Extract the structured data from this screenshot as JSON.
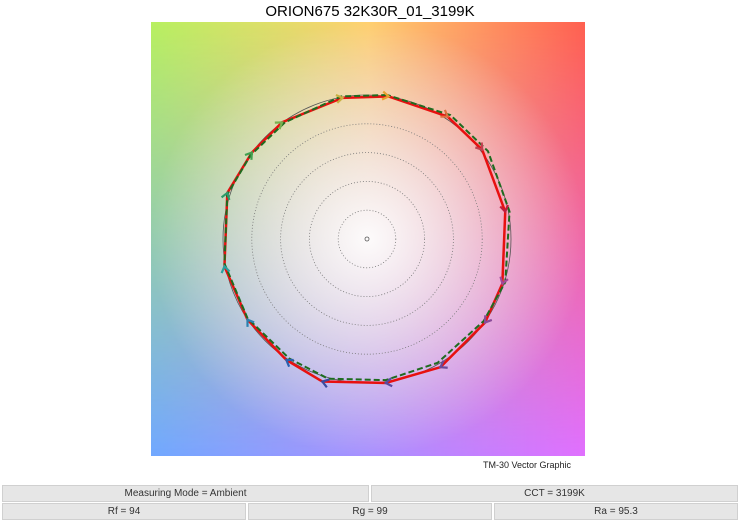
{
  "chart_data": {
    "type": "vector-graphic",
    "title": "ORION675 32K30R_01_3199K",
    "caption": "TM-30 Vector Graphic",
    "reference_circle_radius": 1.0,
    "grid_circles": [
      0.2,
      0.4,
      0.6,
      0.8
    ],
    "test_series": {
      "color": "#e81010",
      "points": [
        [
          0.15,
          0.99
        ],
        [
          -0.17,
          0.98
        ],
        [
          -0.59,
          0.81
        ],
        [
          -0.8,
          0.6
        ],
        [
          -0.97,
          0.32
        ],
        [
          -0.99,
          -0.19
        ],
        [
          -0.83,
          -0.56
        ],
        [
          -0.56,
          -0.84
        ],
        [
          -0.31,
          -0.99
        ],
        [
          0.13,
          -1.0
        ],
        [
          0.51,
          -0.89
        ],
        [
          0.82,
          -0.58
        ],
        [
          0.94,
          -0.31
        ],
        [
          0.96,
          0.19
        ],
        [
          0.8,
          0.62
        ],
        [
          0.56,
          0.85
        ]
      ]
    },
    "reference_series": {
      "color": "#1f6b1f",
      "style": "dashed",
      "points": [
        [
          0.14,
          1.0
        ],
        [
          -0.18,
          0.99
        ],
        [
          -0.57,
          0.81
        ],
        [
          -0.81,
          0.58
        ],
        [
          -0.97,
          0.31
        ],
        [
          -0.99,
          -0.17
        ],
        [
          -0.83,
          -0.55
        ],
        [
          -0.54,
          -0.83
        ],
        [
          -0.27,
          -0.97
        ],
        [
          0.13,
          -0.98
        ],
        [
          0.49,
          -0.86
        ],
        [
          0.81,
          -0.57
        ],
        [
          0.96,
          -0.3
        ],
        [
          0.99,
          0.19
        ],
        [
          0.84,
          0.61
        ],
        [
          0.58,
          0.86
        ]
      ]
    },
    "arrow_colors": [
      "#e8a030",
      "#c8b040",
      "#78b050",
      "#40a050",
      "#2a9a6a",
      "#2aa0a0",
      "#2a80b0",
      "#2a60b0",
      "#3a4aa0",
      "#5a4aa0",
      "#6a4a9a",
      "#8a4a9a",
      "#a04a9a",
      "#c02040",
      "#c04050",
      "#e07040"
    ]
  },
  "table": {
    "row1": [
      "Measuring Mode = Ambient",
      "CCT = 3199K"
    ],
    "row2": [
      "Rf = 94",
      "Rg = 99",
      "Ra = 95.3"
    ]
  }
}
